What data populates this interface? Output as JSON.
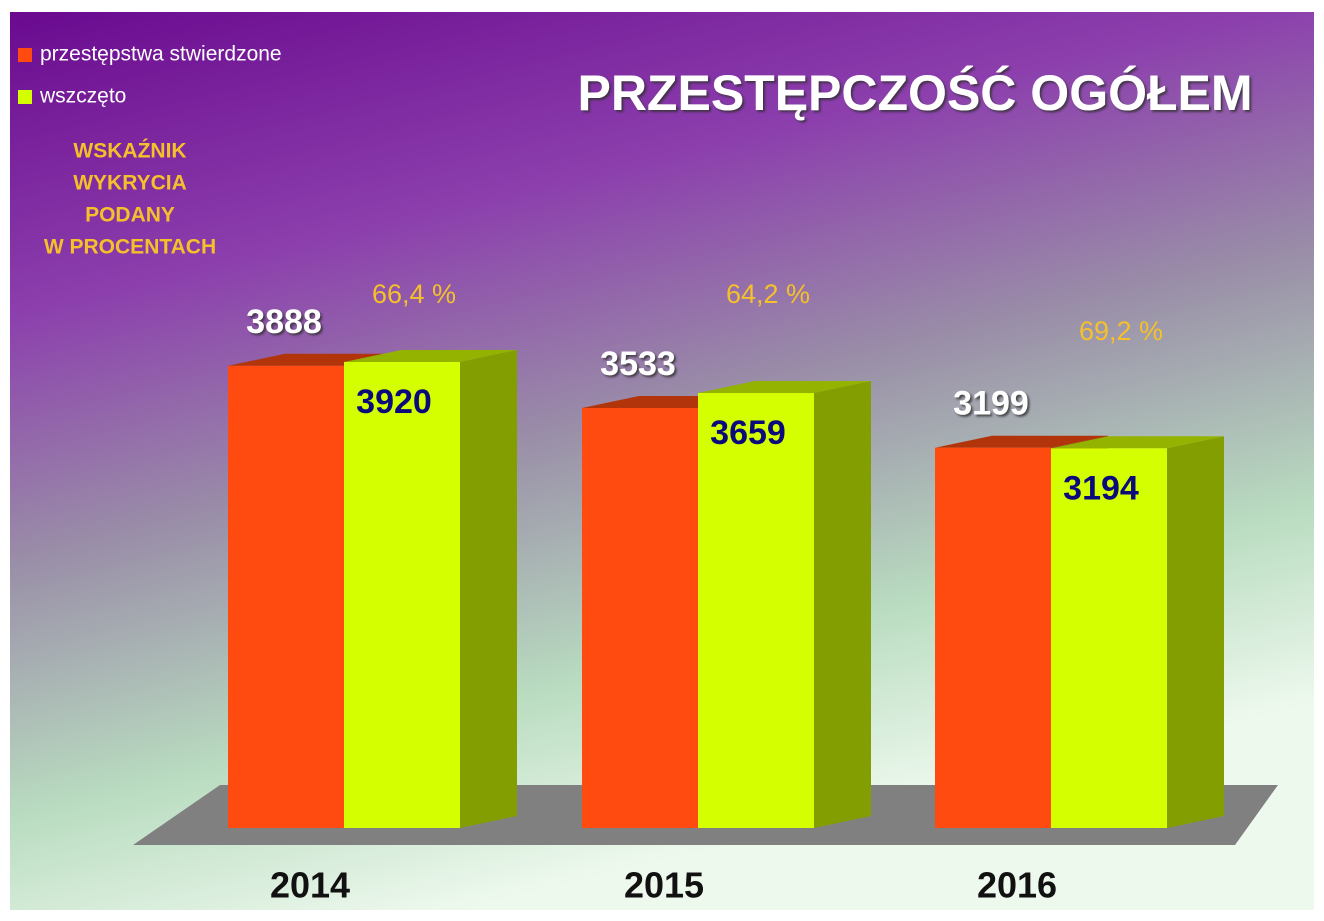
{
  "chart_data": {
    "type": "bar",
    "title": "PRZESTĘPCZOŚĆ OGÓŁEM",
    "annotation": [
      "WSKAŹNIK",
      "WYKRYCIA",
      "PODANY",
      "W PROCENTACH"
    ],
    "categories": [
      "2014",
      "2015",
      "2016"
    ],
    "series": [
      {
        "name": "przestępstwa stwierdzone",
        "color": "#ff4a10",
        "values": [
          3888,
          3533,
          3199
        ]
      },
      {
        "name": "wszczęto",
        "color": "#d4ff00",
        "values": [
          3920,
          3659,
          3194
        ]
      }
    ],
    "detection_rates": {
      "values": [
        66.4,
        64.2,
        69.2
      ],
      "value_labels": [
        "66,4 %",
        "64,2 %",
        "69,2 %"
      ]
    }
  }
}
